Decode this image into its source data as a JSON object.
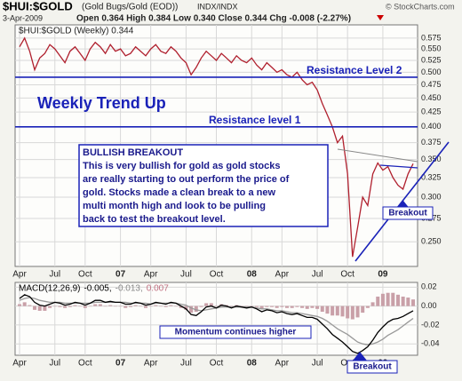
{
  "header": {
    "symbol": "$HUI:$GOLD",
    "name": "(Gold Bugs/Gold (EOD))",
    "exchange": "INDX/INDX",
    "date": "3-Apr-2009",
    "quote": "Open 0.364 High 0.384 Low 0.340 Close 0.344 Chg -0.008 (-2.27%)",
    "credit": "© StockCharts.com"
  },
  "chart_data": [
    {
      "type": "line",
      "log_scale": true,
      "grid": true,
      "legend": "$HUI:$GOLD (Weekly) 0.344",
      "categories": [
        "Apr",
        null,
        null,
        null,
        null,
        null,
        null,
        "Jul",
        null,
        null,
        null,
        null,
        null,
        "Oct",
        null,
        null,
        null,
        null,
        null,
        null,
        "07",
        null,
        null,
        null,
        null,
        null,
        "Apr",
        null,
        null,
        null,
        null,
        null,
        null,
        "Jul",
        null,
        null,
        null,
        null,
        null,
        "Oct",
        null,
        null,
        null,
        null,
        null,
        null,
        "08",
        null,
        null,
        null,
        null,
        null,
        "Apr",
        null,
        null,
        null,
        null,
        null,
        null,
        "Jul",
        null,
        null,
        null,
        null,
        null,
        "Oct",
        null,
        null,
        null,
        null,
        null,
        null,
        "09",
        null,
        null,
        null,
        null,
        null,
        null
      ],
      "series": [
        {
          "color": "#b0202e",
          "type": "line",
          "values": [
            0.555,
            0.575,
            0.545,
            0.505,
            0.53,
            0.54,
            0.56,
            0.55,
            0.535,
            0.52,
            0.545,
            0.555,
            0.54,
            0.525,
            0.55,
            0.565,
            0.555,
            0.54,
            0.56,
            0.545,
            0.55,
            0.535,
            0.54,
            0.555,
            0.545,
            0.535,
            0.55,
            0.56,
            0.545,
            0.54,
            0.555,
            0.545,
            0.53,
            0.52,
            0.495,
            0.51,
            0.53,
            0.545,
            0.535,
            0.525,
            0.54,
            0.53,
            0.52,
            0.535,
            0.525,
            0.52,
            0.53,
            0.515,
            0.505,
            0.52,
            0.51,
            0.5,
            0.505,
            0.495,
            0.49,
            0.5,
            0.485,
            0.475,
            0.48,
            0.465,
            0.44,
            0.42,
            0.4,
            0.375,
            0.385,
            0.33,
            0.235,
            0.265,
            0.3,
            0.29,
            0.33,
            0.345,
            0.335,
            0.34,
            0.325,
            0.315,
            0.31,
            0.33,
            0.344
          ]
        }
      ],
      "ylim": [
        0.226,
        0.607
      ],
      "yticks": [
        {
          "value": 0.25,
          "label": "0.250"
        },
        {
          "value": 0.275,
          "label": "0.275"
        },
        {
          "value": 0.3,
          "label": "0.300"
        },
        {
          "value": 0.325,
          "label": "0.325"
        },
        {
          "value": 0.35,
          "label": "0.350"
        },
        {
          "value": 0.375,
          "label": "0.375"
        },
        {
          "value": 0.4,
          "label": "0.400"
        },
        {
          "value": 0.425,
          "label": "0.425"
        },
        {
          "value": 0.45,
          "label": "0.450"
        },
        {
          "value": 0.475,
          "label": "0.475"
        },
        {
          "value": 0.5,
          "label": "0.500"
        },
        {
          "value": 0.525,
          "label": "0.525"
        },
        {
          "value": 0.55,
          "label": "0.550"
        },
        {
          "value": 0.575,
          "label": "0.575"
        }
      ],
      "hlines": [
        {
          "label": "Resistance Level 2",
          "value": 0.49
        },
        {
          "label": "Resistance level 1",
          "value": 0.4
        }
      ],
      "annotations": [
        "Weekly Trend Up",
        "Breakout"
      ],
      "note": [
        "BULLISH BREAKOUT",
        "This is very bullish for gold as gold stocks",
        "are really starting to out perform the price of",
        "gold. Stocks made a clean break to a new",
        "multi month high and look to be pulling",
        "back to test the breakout level."
      ]
    },
    {
      "type": "line",
      "grid": true,
      "legend": [
        "MACD(12,26,9)",
        "-0.005,",
        "-0.013,",
        "0.007"
      ],
      "categories": [
        "Apr",
        null,
        null,
        null,
        null,
        null,
        null,
        "Jul",
        null,
        null,
        null,
        null,
        null,
        "Oct",
        null,
        null,
        null,
        null,
        null,
        null,
        "07",
        null,
        null,
        null,
        null,
        null,
        "Apr",
        null,
        null,
        null,
        null,
        null,
        null,
        "Jul",
        null,
        null,
        null,
        null,
        null,
        "Oct",
        null,
        null,
        null,
        null,
        null,
        null,
        "08",
        null,
        null,
        null,
        null,
        null,
        "Apr",
        null,
        null,
        null,
        null,
        null,
        null,
        "Jul",
        null,
        null,
        null,
        null,
        null,
        "Oct",
        null,
        null,
        null,
        null,
        null,
        null,
        "09",
        null,
        null,
        null,
        null,
        null,
        null
      ],
      "series": [
        {
          "color": "#c9a0a8",
          "type": "bar",
          "values": [
            0.002,
            0.004,
            0.001,
            -0.004,
            -0.005,
            -0.005,
            -0.002,
            0,
            -0.001,
            -0.002,
            -0.001,
            0.001,
            0,
            -0.002,
            0,
            0.002,
            0.002,
            0,
            0.001,
            0,
            0,
            -0.002,
            -0.001,
            0.001,
            0,
            -0.002,
            0,
            0.001,
            0,
            -0.001,
            0.001,
            0,
            -0.002,
            -0.004,
            -0.007,
            -0.006,
            -0.001,
            0.003,
            0.003,
            0,
            0.002,
            0.001,
            -0.001,
            0.001,
            0,
            -0.001,
            0,
            -0.001,
            -0.003,
            -0.001,
            -0.001,
            -0.002,
            -0.001,
            -0.002,
            -0.002,
            -0.001,
            -0.002,
            -0.003,
            -0.002,
            -0.003,
            -0.006,
            -0.008,
            -0.01,
            -0.01,
            -0.011,
            -0.013,
            -0.014,
            -0.012,
            -0.007,
            -0.002,
            0.004,
            0.01,
            0.013,
            0.014,
            0.014,
            0.012,
            0.01,
            0.009,
            0.007
          ]
        },
        {
          "color": "#999999",
          "type": "line",
          "values": [
            0.006,
            0.008,
            0.009,
            0.008,
            0.006,
            0.005,
            0.004,
            0.004,
            0.004,
            0.003,
            0.003,
            0.003,
            0.003,
            0.003,
            0.003,
            0.004,
            0.004,
            0.004,
            0.004,
            0.004,
            0.004,
            0.004,
            0.003,
            0.003,
            0.003,
            0.003,
            0.002,
            0.003,
            0.003,
            0.003,
            0.003,
            0.003,
            0.002,
            0.001,
            -0.002,
            -0.004,
            -0.005,
            -0.004,
            -0.003,
            -0.002,
            -0.001,
            -0.001,
            -0.001,
            -0.001,
            -0.001,
            -0.001,
            -0.001,
            -0.002,
            -0.003,
            -0.003,
            -0.004,
            -0.005,
            -0.005,
            -0.006,
            -0.007,
            -0.007,
            -0.008,
            -0.009,
            -0.01,
            -0.011,
            -0.013,
            -0.016,
            -0.02,
            -0.024,
            -0.027,
            -0.03,
            -0.034,
            -0.038,
            -0.04,
            -0.041,
            -0.04,
            -0.038,
            -0.035,
            -0.031,
            -0.028,
            -0.025,
            -0.021,
            -0.017,
            -0.013
          ]
        },
        {
          "color": "#000000",
          "type": "line",
          "values": [
            0.008,
            0.012,
            0.01,
            0.004,
            0.001,
            0,
            0.002,
            0.004,
            0.003,
            0.001,
            0.002,
            0.004,
            0.003,
            0.001,
            0.003,
            0.006,
            0.006,
            0.004,
            0.005,
            0.004,
            0.004,
            0.002,
            0.002,
            0.004,
            0.003,
            0.001,
            0.002,
            0.004,
            0.003,
            0.002,
            0.004,
            0.003,
            0,
            -0.003,
            -0.009,
            -0.01,
            -0.006,
            -0.001,
            0,
            -0.002,
            0.001,
            0,
            -0.002,
            0,
            -0.001,
            -0.002,
            -0.001,
            -0.003,
            -0.006,
            -0.004,
            -0.005,
            -0.007,
            -0.006,
            -0.008,
            -0.009,
            -0.008,
            -0.01,
            -0.012,
            -0.012,
            -0.014,
            -0.019,
            -0.024,
            -0.03,
            -0.034,
            -0.038,
            -0.043,
            -0.048,
            -0.05,
            -0.047,
            -0.043,
            -0.036,
            -0.028,
            -0.022,
            -0.017,
            -0.014,
            -0.013,
            -0.011,
            -0.008,
            -0.005
          ]
        }
      ],
      "ylim": [
        -0.052,
        0.025
      ],
      "yticks": [
        0.02,
        {
          "value": 0,
          "label": "0.00"
        },
        -0.02,
        -0.04
      ],
      "annotations": [
        "Momentum continues higher",
        "Breakout"
      ]
    }
  ]
}
